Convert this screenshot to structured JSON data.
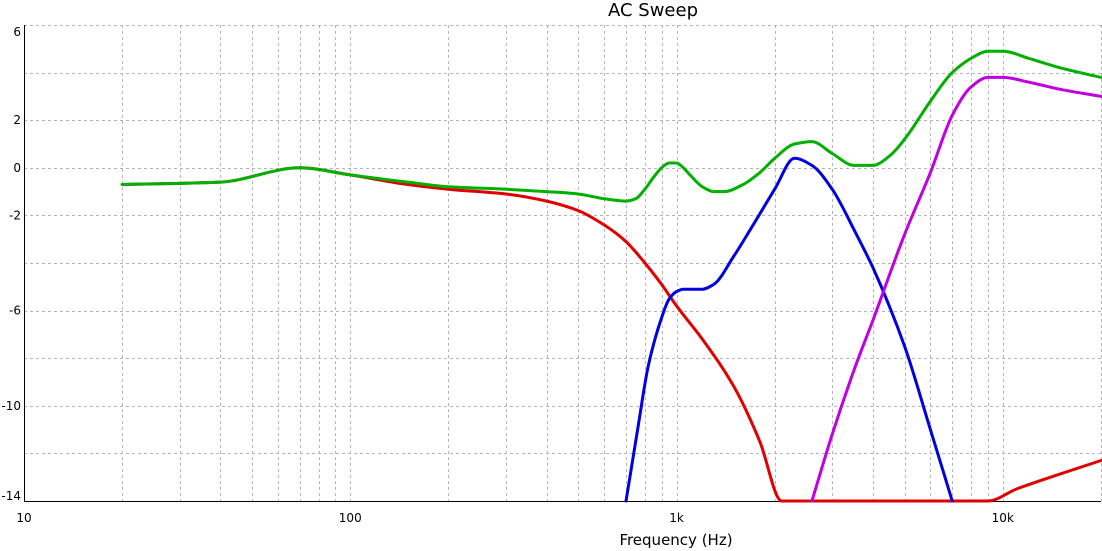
{
  "chart_data": {
    "type": "line",
    "title": "AC Sweep",
    "xlabel": "Frequency (Hz)",
    "ylabel": "",
    "xscale": "log",
    "xlim": [
      10,
      20000
    ],
    "ylim": [
      -14,
      6
    ],
    "grid": true,
    "x_ticks": [
      {
        "value": 10,
        "label": "10"
      },
      {
        "value": 100,
        "label": "100"
      },
      {
        "value": 1000,
        "label": "1k"
      },
      {
        "value": 10000,
        "label": "10k"
      }
    ],
    "y_ticks": [
      {
        "value": 6,
        "label": "6"
      },
      {
        "value": 2,
        "label": "2"
      },
      {
        "value": 0,
        "label": "0"
      },
      {
        "value": -2,
        "label": "-2"
      },
      {
        "value": -6,
        "label": "-6"
      },
      {
        "value": -10,
        "label": "-10"
      },
      {
        "value": -14,
        "label": "-14"
      }
    ],
    "series": [
      {
        "color": "#e00000",
        "x": [
          20,
          40,
          70,
          100,
          150,
          200,
          300,
          400,
          500,
          600,
          700,
          800,
          900,
          1000,
          1200,
          1500,
          1800,
          2100,
          9000,
          11000,
          14000,
          20000
        ],
        "y": [
          -0.7,
          -0.6,
          0.0,
          -0.3,
          -0.7,
          -0.9,
          -1.1,
          -1.4,
          -1.8,
          -2.4,
          -3.1,
          -4.0,
          -4.9,
          -5.8,
          -7.2,
          -9.2,
          -11.5,
          -14.0,
          -14.0,
          -13.5,
          -13.0,
          -12.3
        ]
      },
      {
        "color": "#0000e0",
        "x": [
          700,
          760,
          820,
          900,
          950,
          1000,
          1050,
          1200,
          1300,
          1500,
          1700,
          2000,
          2300,
          2600,
          3000,
          3500,
          4000,
          5000,
          6000,
          7000
        ],
        "y": [
          -14.0,
          -11.0,
          -8.3,
          -6.3,
          -5.5,
          -5.2,
          -5.1,
          -5.1,
          -4.9,
          -3.7,
          -2.5,
          -0.9,
          0.4,
          0.1,
          -0.9,
          -2.6,
          -4.2,
          -7.5,
          -11.0,
          -14.0
        ]
      },
      {
        "color": "#c000e0",
        "x": [
          2600,
          3000,
          3500,
          4000,
          5000,
          6000,
          7000,
          8000,
          9000,
          10000,
          12000,
          15000,
          20000
        ],
        "y": [
          -14.0,
          -11.2,
          -8.5,
          -6.4,
          -2.8,
          -0.2,
          2.2,
          3.4,
          3.8,
          3.8,
          3.6,
          3.3,
          3.0
        ]
      },
      {
        "color": "#00b000",
        "x": [
          20,
          40,
          70,
          100,
          150,
          200,
          300,
          400,
          500,
          600,
          700,
          750,
          800,
          850,
          900,
          950,
          1000,
          1050,
          1100,
          1200,
          1300,
          1400,
          1600,
          1800,
          2000,
          2300,
          2600,
          3000,
          3500,
          4000,
          4500,
          5000,
          6000,
          7000,
          8000,
          9000,
          10000,
          12000,
          15000,
          20000
        ],
        "y": [
          -0.7,
          -0.6,
          0.0,
          -0.3,
          -0.6,
          -0.8,
          -0.9,
          -1.0,
          -1.1,
          -1.3,
          -1.4,
          -1.3,
          -0.9,
          -0.4,
          0.0,
          0.2,
          0.2,
          0.0,
          -0.3,
          -0.8,
          -1.0,
          -1.0,
          -0.7,
          -0.2,
          0.4,
          1.0,
          1.1,
          0.6,
          0.1,
          0.1,
          0.5,
          1.2,
          2.8,
          4.0,
          4.6,
          4.9,
          4.9,
          4.6,
          4.2,
          3.8
        ]
      }
    ]
  }
}
